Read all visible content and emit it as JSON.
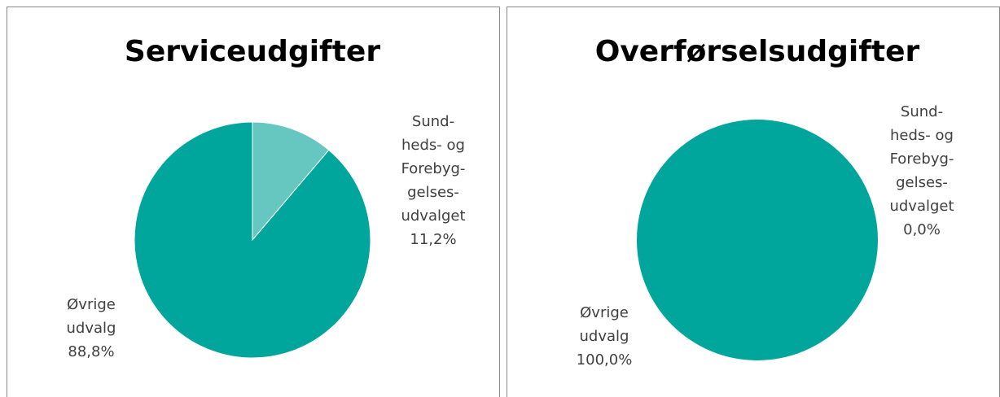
{
  "chart_data": [
    {
      "type": "pie",
      "title": "Serviceudgifter",
      "categories": [
        "Sund-\nheds- og\nForebyg-\ngelses-\nudvalget",
        "Øvrige\nudvalg"
      ],
      "values": [
        11.2,
        88.8
      ],
      "value_labels": [
        "11,2%",
        "88,8%"
      ],
      "colors": [
        "#66c7c0",
        "#00a59b"
      ]
    },
    {
      "type": "pie",
      "title": "Overførselsudgifter",
      "categories": [
        "Sund-\nheds- og\nForebyg-\ngelses-\nudvalget",
        "Øvrige\nudvalg"
      ],
      "values": [
        0.0,
        100.0
      ],
      "value_labels": [
        "0,0%",
        "100,0%"
      ],
      "colors": [
        "#66c7c0",
        "#00a59b"
      ]
    }
  ]
}
